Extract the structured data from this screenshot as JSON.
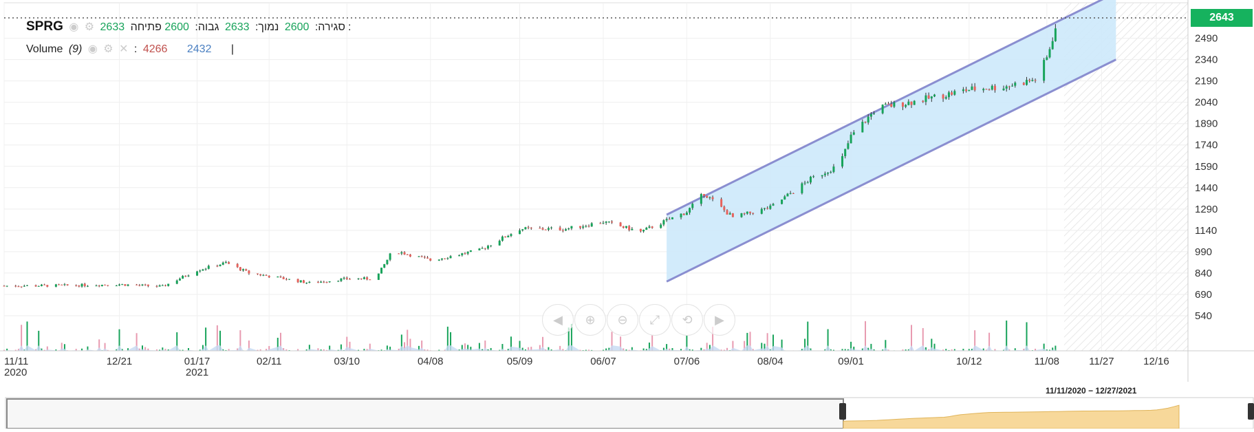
{
  "symbol": "SPRG",
  "ohlc": {
    "open_label": "פתיחה:",
    "open": "2600",
    "high_label": "גבוה:",
    "high": "2633",
    "low_label": "נמוך:",
    "low": "2600",
    "close_label": "סגירה:",
    "close": "2633"
  },
  "volume": {
    "label": "Volume",
    "period": "(9)",
    "value1": "4266",
    "value2": "2432",
    "cursor": "|"
  },
  "last_price": "2643",
  "range_label": "11/11/2020 − 12/27/2021",
  "colors": {
    "up": "#17a35a",
    "down": "#e8625c",
    "channel_fill": "#cde9fb",
    "channel_line": "#8a8ed0",
    "price_badge": "#16b25e",
    "volume_area": "#c5d9f2"
  },
  "icons": [
    "eye-icon",
    "gear-icon",
    "close-icon",
    "pan-left-icon",
    "zoom-in-icon",
    "zoom-out-icon",
    "zoom-range-icon",
    "zoom-reset-icon",
    "pan-right-icon"
  ],
  "chart_data": {
    "type": "candlestick",
    "ylim": [
      390,
      2720
    ],
    "y_ticks": [
      540,
      690,
      840,
      990,
      1140,
      1290,
      1440,
      1590,
      1740,
      1890,
      2040,
      2190,
      2340,
      2490
    ],
    "x_ticks": [
      {
        "label": "11/11",
        "sub": "2020"
      },
      {
        "label": "12/21",
        "sub": ""
      },
      {
        "label": "01/17",
        "sub": "2021"
      },
      {
        "label": "02/11",
        "sub": ""
      },
      {
        "label": "03/10",
        "sub": ""
      },
      {
        "label": "04/08",
        "sub": ""
      },
      {
        "label": "05/09",
        "sub": ""
      },
      {
        "label": "06/07",
        "sub": ""
      },
      {
        "label": "07/06",
        "sub": ""
      },
      {
        "label": "08/04",
        "sub": ""
      },
      {
        "label": "09/01",
        "sub": ""
      },
      {
        "label": "10/12",
        "sub": ""
      },
      {
        "label": "11/08",
        "sub": ""
      },
      {
        "label": "11/27",
        "sub": ""
      },
      {
        "label": "12/16",
        "sub": ""
      }
    ],
    "price_path": [
      [
        "11/11/2020",
        750
      ],
      [
        "12/01/2020",
        752
      ],
      [
        "12/21/2020",
        760
      ],
      [
        "01/05/2021",
        745
      ],
      [
        "01/17/2021",
        860
      ],
      [
        "01/27/2021",
        912
      ],
      [
        "02/04/2021",
        840
      ],
      [
        "02/11/2021",
        818
      ],
      [
        "02/25/2021",
        770
      ],
      [
        "03/10/2021",
        800
      ],
      [
        "03/20/2021",
        800
      ],
      [
        "03/26/2021",
        1000
      ],
      [
        "04/08/2021",
        930
      ],
      [
        "04/25/2021",
        1000
      ],
      [
        "05/09/2021",
        1150
      ],
      [
        "05/25/2021",
        1150
      ],
      [
        "06/07/2021",
        1200
      ],
      [
        "06/20/2021",
        1130
      ],
      [
        "07/06/2021",
        1270
      ],
      [
        "07/12/2021",
        1400
      ],
      [
        "07/22/2021",
        1230
      ],
      [
        "08/04/2021",
        1300
      ],
      [
        "08/18/2021",
        1500
      ],
      [
        "08/28/2021",
        1600
      ],
      [
        "09/01/2021",
        1800
      ],
      [
        "09/10/2021",
        2000
      ],
      [
        "09/24/2021",
        2050
      ],
      [
        "10/12/2021",
        2130
      ],
      [
        "10/24/2021",
        2150
      ],
      [
        "11/04/2021",
        2200
      ],
      [
        "11/08/2021",
        2350
      ],
      [
        "11/12/2021",
        2633
      ]
    ],
    "channel": {
      "upper": [
        [
          "06/29/2021",
          1250
        ],
        [
          "12/02/2021",
          2810
        ]
      ],
      "lower": [
        [
          "06/29/2021",
          780
        ],
        [
          "12/02/2021",
          2340
        ]
      ]
    },
    "last_close": 2633
  }
}
